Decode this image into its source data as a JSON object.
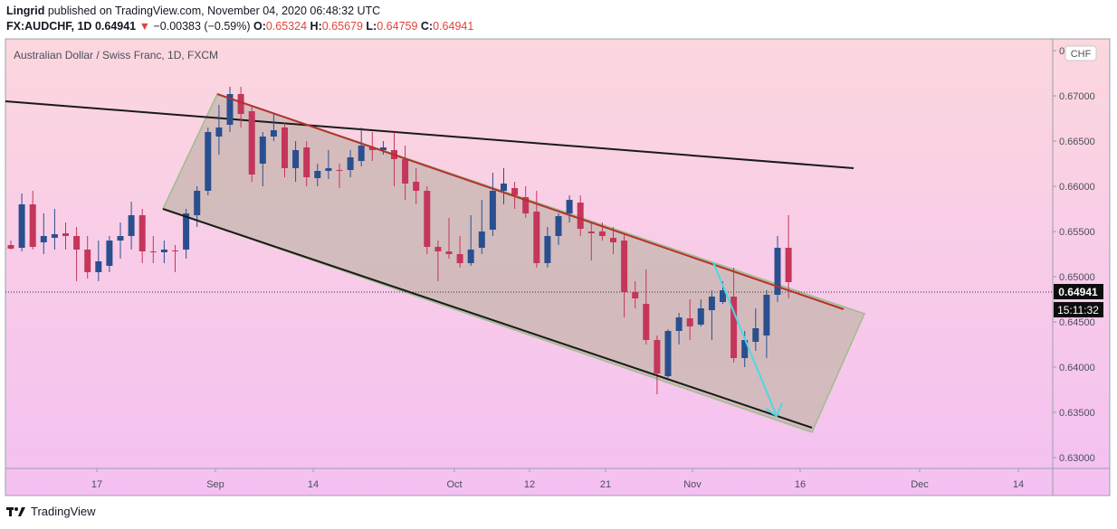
{
  "header": {
    "publisher": "Lingrid",
    "published_text": "published on TradingView.com, November 04, 2020 06:48:32 UTC",
    "symbol": "FX:AUDCHF, 1D",
    "last": "0.64941",
    "change": "−0.00383 (−0.59%)",
    "o_label": "O:",
    "o": "0.65324",
    "h_label": "H:",
    "h": "0.65679",
    "l_label": "L:",
    "l": "0.64759",
    "c_label": "C:",
    "c": "0.64941"
  },
  "instrument_label": "Australian Dollar / Swiss Franc, 1D, FXCM",
  "currency_badge": "CHF",
  "price_label": "0.64941",
  "countdown_label": "15:11:32",
  "footer": {
    "brand": "TradingView",
    "logo_icon": "tradingview-logo-icon"
  },
  "colors": {
    "bull": "#2a4f8f",
    "bear": "#c4365a",
    "channel_fill": "#ccb9b5",
    "channel_border": "#9bbf8a",
    "arrow": "#4fd7e6",
    "upper_line": "#b3312c"
  },
  "chart_data": {
    "type": "candlestick",
    "symbol": "FX:AUDCHF",
    "timeframe": "1D",
    "ylim": [
      0.63,
      0.679
    ],
    "y_ticks": [
      "0.67500",
      "0.67000",
      "0.66500",
      "0.66000",
      "0.65500",
      "0.65000",
      "0.64500",
      "0.64000",
      "0.63500",
      "0.63000"
    ],
    "x_ticks": [
      "17",
      "Sep",
      "14",
      "Oct",
      "12",
      "21",
      "Nov",
      "16",
      "Dec",
      "14"
    ],
    "current_price": 0.64941,
    "candles": [
      {
        "o": 0.6535,
        "h": 0.654,
        "l": 0.653,
        "c": 0.6531
      },
      {
        "o": 0.6532,
        "h": 0.6592,
        "l": 0.6528,
        "c": 0.658
      },
      {
        "o": 0.658,
        "h": 0.6595,
        "l": 0.653,
        "c": 0.6533
      },
      {
        "o": 0.6538,
        "h": 0.657,
        "l": 0.6525,
        "c": 0.6545
      },
      {
        "o": 0.6543,
        "h": 0.6575,
        "l": 0.653,
        "c": 0.6547
      },
      {
        "o": 0.6548,
        "h": 0.656,
        "l": 0.653,
        "c": 0.6545
      },
      {
        "o": 0.6545,
        "h": 0.6555,
        "l": 0.6495,
        "c": 0.653
      },
      {
        "o": 0.653,
        "h": 0.6545,
        "l": 0.6498,
        "c": 0.6505
      },
      {
        "o": 0.6505,
        "h": 0.654,
        "l": 0.6495,
        "c": 0.6517
      },
      {
        "o": 0.6512,
        "h": 0.6545,
        "l": 0.6505,
        "c": 0.654
      },
      {
        "o": 0.654,
        "h": 0.656,
        "l": 0.652,
        "c": 0.6545
      },
      {
        "o": 0.6545,
        "h": 0.6583,
        "l": 0.653,
        "c": 0.6568
      },
      {
        "o": 0.6568,
        "h": 0.6575,
        "l": 0.6515,
        "c": 0.6528
      },
      {
        "o": 0.6528,
        "h": 0.6545,
        "l": 0.6515,
        "c": 0.6527
      },
      {
        "o": 0.6527,
        "h": 0.654,
        "l": 0.6515,
        "c": 0.653
      },
      {
        "o": 0.6529,
        "h": 0.6535,
        "l": 0.6505,
        "c": 0.6528
      },
      {
        "o": 0.653,
        "h": 0.6575,
        "l": 0.652,
        "c": 0.657
      },
      {
        "o": 0.6568,
        "h": 0.66,
        "l": 0.6555,
        "c": 0.6595
      },
      {
        "o": 0.6595,
        "h": 0.6665,
        "l": 0.659,
        "c": 0.666
      },
      {
        "o": 0.6655,
        "h": 0.669,
        "l": 0.6635,
        "c": 0.6665
      },
      {
        "o": 0.6668,
        "h": 0.671,
        "l": 0.666,
        "c": 0.6702
      },
      {
        "o": 0.6702,
        "h": 0.671,
        "l": 0.6665,
        "c": 0.668
      },
      {
        "o": 0.6683,
        "h": 0.669,
        "l": 0.6605,
        "c": 0.6613
      },
      {
        "o": 0.6625,
        "h": 0.666,
        "l": 0.66,
        "c": 0.6655
      },
      {
        "o": 0.6655,
        "h": 0.668,
        "l": 0.665,
        "c": 0.6662
      },
      {
        "o": 0.6665,
        "h": 0.667,
        "l": 0.661,
        "c": 0.662
      },
      {
        "o": 0.662,
        "h": 0.665,
        "l": 0.6605,
        "c": 0.664
      },
      {
        "o": 0.6643,
        "h": 0.665,
        "l": 0.66,
        "c": 0.661
      },
      {
        "o": 0.6609,
        "h": 0.6625,
        "l": 0.66,
        "c": 0.6617
      },
      {
        "o": 0.6617,
        "h": 0.664,
        "l": 0.6608,
        "c": 0.662
      },
      {
        "o": 0.6618,
        "h": 0.6625,
        "l": 0.6598,
        "c": 0.6617
      },
      {
        "o": 0.6618,
        "h": 0.664,
        "l": 0.661,
        "c": 0.6632
      },
      {
        "o": 0.6628,
        "h": 0.6665,
        "l": 0.6622,
        "c": 0.6645
      },
      {
        "o": 0.6643,
        "h": 0.666,
        "l": 0.6628,
        "c": 0.664
      },
      {
        "o": 0.664,
        "h": 0.665,
        "l": 0.6635,
        "c": 0.6643
      },
      {
        "o": 0.664,
        "h": 0.666,
        "l": 0.66,
        "c": 0.663
      },
      {
        "o": 0.663,
        "h": 0.6645,
        "l": 0.6585,
        "c": 0.6603
      },
      {
        "o": 0.6605,
        "h": 0.662,
        "l": 0.658,
        "c": 0.6595
      },
      {
        "o": 0.6595,
        "h": 0.66,
        "l": 0.6525,
        "c": 0.6533
      },
      {
        "o": 0.6533,
        "h": 0.654,
        "l": 0.6495,
        "c": 0.6528
      },
      {
        "o": 0.6528,
        "h": 0.6565,
        "l": 0.652,
        "c": 0.6525
      },
      {
        "o": 0.6525,
        "h": 0.6545,
        "l": 0.651,
        "c": 0.6515
      },
      {
        "o": 0.6515,
        "h": 0.6568,
        "l": 0.6512,
        "c": 0.653
      },
      {
        "o": 0.6532,
        "h": 0.6585,
        "l": 0.6525,
        "c": 0.655
      },
      {
        "o": 0.6552,
        "h": 0.6615,
        "l": 0.6545,
        "c": 0.6595
      },
      {
        "o": 0.6595,
        "h": 0.662,
        "l": 0.658,
        "c": 0.6603
      },
      {
        "o": 0.6598,
        "h": 0.6605,
        "l": 0.6575,
        "c": 0.659
      },
      {
        "o": 0.6588,
        "h": 0.66,
        "l": 0.6565,
        "c": 0.657
      },
      {
        "o": 0.6572,
        "h": 0.6595,
        "l": 0.651,
        "c": 0.6515
      },
      {
        "o": 0.6515,
        "h": 0.6555,
        "l": 0.651,
        "c": 0.6545
      },
      {
        "o": 0.6545,
        "h": 0.657,
        "l": 0.6535,
        "c": 0.6567
      },
      {
        "o": 0.657,
        "h": 0.659,
        "l": 0.656,
        "c": 0.6585
      },
      {
        "o": 0.6582,
        "h": 0.659,
        "l": 0.6545,
        "c": 0.6553
      },
      {
        "o": 0.655,
        "h": 0.656,
        "l": 0.6518,
        "c": 0.6548
      },
      {
        "o": 0.655,
        "h": 0.656,
        "l": 0.654,
        "c": 0.6545
      },
      {
        "o": 0.6543,
        "h": 0.6555,
        "l": 0.6525,
        "c": 0.6538
      },
      {
        "o": 0.654,
        "h": 0.6548,
        "l": 0.6455,
        "c": 0.6483
      },
      {
        "o": 0.6483,
        "h": 0.6495,
        "l": 0.6465,
        "c": 0.6476
      },
      {
        "o": 0.647,
        "h": 0.6508,
        "l": 0.6425,
        "c": 0.643
      },
      {
        "o": 0.643,
        "h": 0.6435,
        "l": 0.637,
        "c": 0.6393
      },
      {
        "o": 0.639,
        "h": 0.6442,
        "l": 0.6388,
        "c": 0.644
      },
      {
        "o": 0.644,
        "h": 0.646,
        "l": 0.6425,
        "c": 0.6455
      },
      {
        "o": 0.6454,
        "h": 0.6475,
        "l": 0.643,
        "c": 0.6445
      },
      {
        "o": 0.6447,
        "h": 0.6475,
        "l": 0.6445,
        "c": 0.6465
      },
      {
        "o": 0.6463,
        "h": 0.6485,
        "l": 0.643,
        "c": 0.6478
      },
      {
        "o": 0.6472,
        "h": 0.6495,
        "l": 0.647,
        "c": 0.6485
      },
      {
        "o": 0.6478,
        "h": 0.651,
        "l": 0.6405,
        "c": 0.641
      },
      {
        "o": 0.641,
        "h": 0.644,
        "l": 0.64,
        "c": 0.643
      },
      {
        "o": 0.6428,
        "h": 0.6465,
        "l": 0.6418,
        "c": 0.6443
      },
      {
        "o": 0.6435,
        "h": 0.6485,
        "l": 0.641,
        "c": 0.648
      },
      {
        "o": 0.648,
        "h": 0.6545,
        "l": 0.6472,
        "c": 0.6532
      },
      {
        "o": 0.6532,
        "h": 0.6568,
        "l": 0.6476,
        "c": 0.6494
      }
    ],
    "drawings": {
      "black_descending_line": {
        "points": [
          [
            "start",
            0.6705
          ],
          [
            "end",
            0.663
          ]
        ]
      },
      "channel_upper": [
        0.6713,
        0.6475
      ],
      "channel_lower": [
        0.6588,
        0.634
      ],
      "forecast_arrow": {
        "from": 0.653,
        "to": 0.6358
      }
    }
  }
}
